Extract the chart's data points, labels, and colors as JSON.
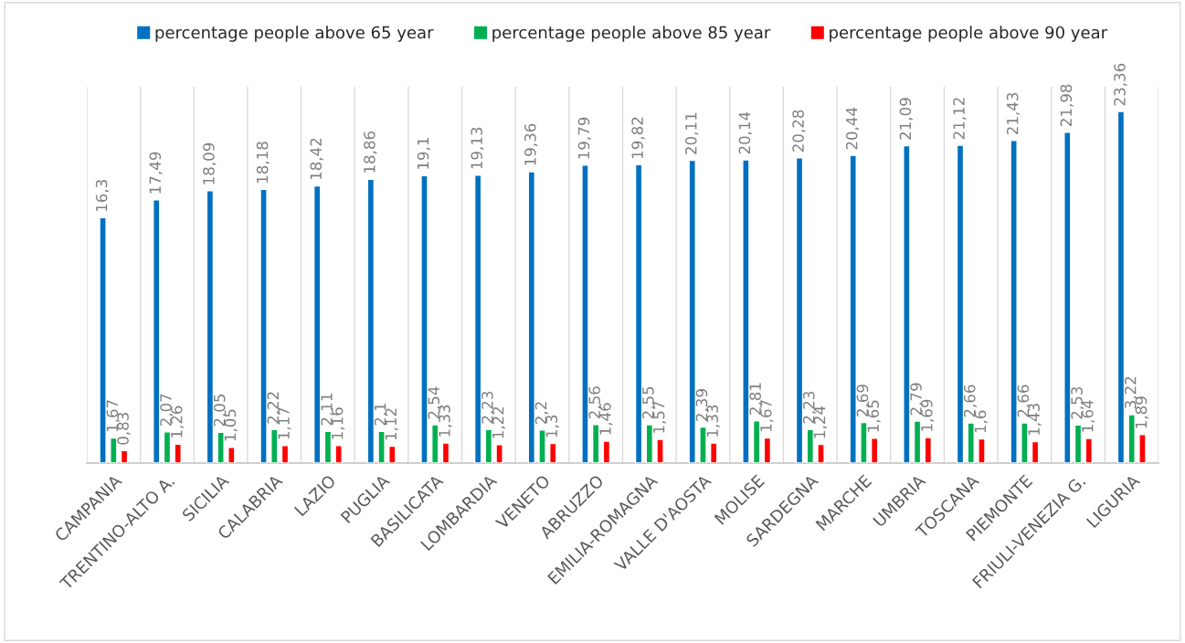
{
  "chart_data": {
    "type": "bar",
    "categories": [
      "CAMPANIA",
      "TRENTINO-ALTO A.",
      "SICILIA",
      "CALABRIA",
      "LAZIO",
      "PUGLIA",
      "BASILICATA",
      "LOMBARDIA",
      "VENETO",
      "ABRUZZO",
      "EMILIA-ROMAGNA",
      "VALLE D'AOSTA",
      "MOLISE",
      "SARDEGNA",
      "MARCHE",
      "UMBRIA",
      "TOSCANA",
      "PIEMONTE",
      "FRIULI-VENEZIA G.",
      "LIGURIA"
    ],
    "series": [
      {
        "name": "percentage people above 65 year",
        "color": "#0070c0",
        "values": [
          16.3,
          17.49,
          18.09,
          18.18,
          18.42,
          18.86,
          19.1,
          19.13,
          19.36,
          19.79,
          19.82,
          20.11,
          20.14,
          20.28,
          20.44,
          21.09,
          21.12,
          21.43,
          21.98,
          23.36
        ],
        "value_labels": [
          "16,3",
          "17,49",
          "18,09",
          "18,18",
          "18,42",
          "18,86",
          "19,1",
          "19,13",
          "19,36",
          "19,79",
          "19,82",
          "20,11",
          "20,14",
          "20,28",
          "20,44",
          "21,09",
          "21,12",
          "21,43",
          "21,98",
          "23,36"
        ]
      },
      {
        "name": "percentage people above 85 year",
        "color": "#00b050",
        "values": [
          1.67,
          2.07,
          2.05,
          2.22,
          2.11,
          2.1,
          2.54,
          2.23,
          2.2,
          2.56,
          2.55,
          2.39,
          2.81,
          2.23,
          2.69,
          2.79,
          2.66,
          2.66,
          2.53,
          3.22
        ],
        "value_labels": [
          "1,67",
          "2,07",
          "2,05",
          "2,22",
          "2,11",
          "2,1",
          "2,54",
          "2,23",
          "2,2",
          "2,56",
          "2,55",
          "2,39",
          "2,81",
          "2,23",
          "2,69",
          "2,79",
          "2,66",
          "2,66",
          "2,53",
          "3,22"
        ]
      },
      {
        "name": "percentage people above 90 year",
        "color": "#ff0000",
        "values": [
          0.83,
          1.26,
          1.05,
          1.17,
          1.16,
          1.12,
          1.33,
          1.22,
          1.3,
          1.46,
          1.57,
          1.33,
          1.67,
          1.24,
          1.65,
          1.69,
          1.6,
          1.43,
          1.64,
          1.89
        ],
        "value_labels": [
          "0,83",
          "1,26",
          "1,05",
          "1,17",
          "1,16",
          "1,12",
          "1,33",
          "1,22",
          "1,3",
          "1,46",
          "1,57",
          "1,33",
          "1,67",
          "1,24",
          "1,65",
          "1,69",
          "1,6",
          "1,43",
          "1,64",
          "1,89"
        ]
      }
    ],
    "ylim": [
      0,
      25
    ],
    "tick_labels": "x",
    "grid": "x",
    "legend": "top"
  }
}
